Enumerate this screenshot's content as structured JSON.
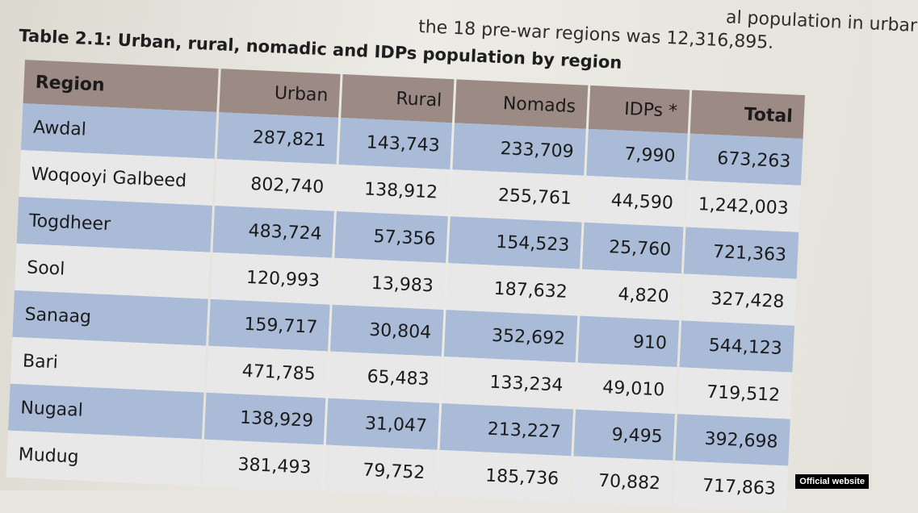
{
  "intro": {
    "line1": "al population in urbar",
    "line2": "the 18 pre-war regions was 12,316,895."
  },
  "table": {
    "title": "Table 2.1: Urban, rural, nomadic and IDPs population by region",
    "headers": [
      "Region",
      "Urban",
      "Rural",
      "Nomads",
      "IDPs *",
      "Total"
    ],
    "rows": [
      [
        "Awdal",
        "287,821",
        "143,743",
        "233,709",
        "7,990",
        "673,263"
      ],
      [
        "Woqooyi Galbeed",
        "802,740",
        "138,912",
        "255,761",
        "44,590",
        "1,242,003"
      ],
      [
        "Togdheer",
        "483,724",
        "57,356",
        "154,523",
        "25,760",
        "721,363"
      ],
      [
        "Sool",
        "120,993",
        "13,983",
        "187,632",
        "4,820",
        "327,428"
      ],
      [
        "Sanaag",
        "159,717",
        "30,804",
        "352,692",
        "910",
        "544,123"
      ],
      [
        "Bari",
        "471,785",
        "65,483",
        "133,234",
        "49,010",
        "719,512"
      ],
      [
        "Nugaal",
        "138,929",
        "31,047",
        "213,227",
        "9,495",
        "392,698"
      ],
      [
        "Mudug",
        "381,493",
        "79,752",
        "185,736",
        "70,882",
        "717,863"
      ]
    ]
  },
  "watermark": "Official website"
}
